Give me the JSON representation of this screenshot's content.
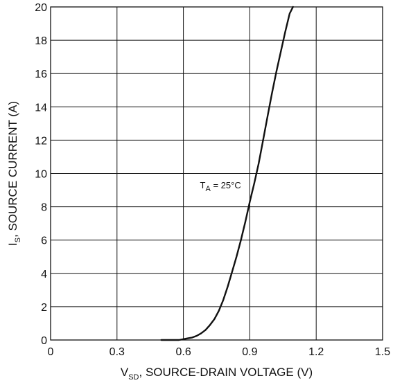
{
  "chart_data": {
    "type": "line",
    "xlim": [
      0,
      1.5
    ],
    "ylim": [
      0,
      20
    ],
    "x_ticks": [
      "0",
      "0.3",
      "0.6",
      "0.9",
      "1.2",
      "1.5"
    ],
    "y_ticks": [
      "0",
      "2",
      "4",
      "6",
      "8",
      "10",
      "12",
      "14",
      "16",
      "18",
      "20"
    ],
    "grid": true,
    "xlabel": {
      "main": "V",
      "sub": "SD",
      "rest": ", SOURCE-DRAIN VOLTAGE (V)"
    },
    "ylabel": {
      "main": "I",
      "sub": "S",
      "rest": ", SOURCE CURRENT (A)"
    },
    "annotation": {
      "main": "T",
      "sub": "A",
      "rest": " = 25°C"
    },
    "series": [
      {
        "x": [
          0.5,
          0.54,
          0.58,
          0.6,
          0.62,
          0.64,
          0.66,
          0.68,
          0.7,
          0.72,
          0.74,
          0.76,
          0.78,
          0.8,
          0.82,
          0.84,
          0.86,
          0.88,
          0.9,
          0.92,
          0.94,
          0.96,
          0.98,
          1.0,
          1.02,
          1.04,
          1.06,
          1.08,
          1.095
        ],
        "y": [
          0.0,
          0.0,
          0.0,
          0.05,
          0.1,
          0.15,
          0.25,
          0.4,
          0.6,
          0.9,
          1.25,
          1.75,
          2.4,
          3.2,
          4.1,
          5.0,
          6.0,
          7.1,
          8.3,
          9.4,
          10.6,
          12.0,
          13.4,
          14.8,
          16.1,
          17.3,
          18.5,
          19.6,
          20.0
        ]
      }
    ]
  }
}
